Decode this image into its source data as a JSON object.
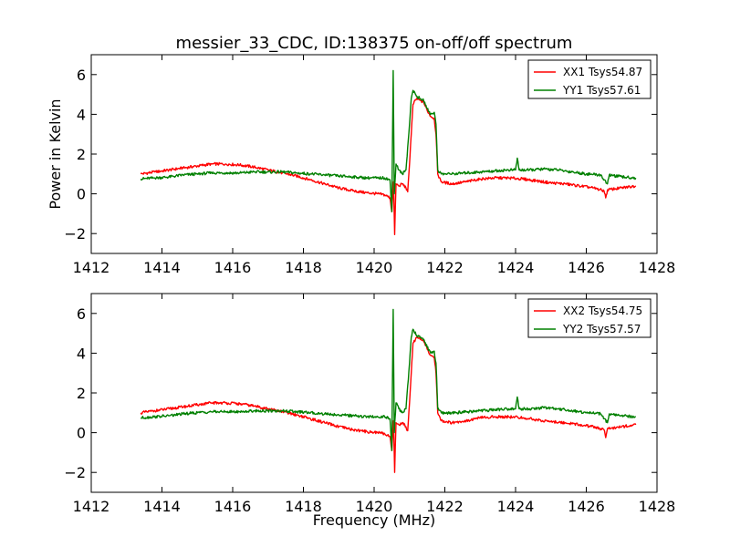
{
  "title": "messier_33_CDC, ID:138375 on-off/off spectrum",
  "xlabel": "Frequency (MHz)",
  "ylabel": "Power in Kelvin",
  "colors": {
    "xx": "#ff0000",
    "yy": "#008000"
  },
  "chart_data": [
    {
      "type": "line",
      "ylabel": "Power in Kelvin",
      "xlim": [
        1412,
        1428
      ],
      "ylim": [
        -3,
        7
      ],
      "xticks": [
        1412,
        1414,
        1416,
        1418,
        1420,
        1422,
        1424,
        1426,
        1428
      ],
      "yticks": [
        -2,
        0,
        2,
        4,
        6
      ],
      "legend_position": "top-right",
      "series": [
        {
          "name": "XX1 Tsys54.87",
          "color": "#ff0000",
          "points": [
            [
              1413.4,
              1.0
            ],
            [
              1413.8,
              1.1
            ],
            [
              1414.2,
              1.2
            ],
            [
              1414.6,
              1.3
            ],
            [
              1415.0,
              1.4
            ],
            [
              1415.4,
              1.5
            ],
            [
              1415.8,
              1.5
            ],
            [
              1416.2,
              1.45
            ],
            [
              1416.6,
              1.35
            ],
            [
              1417.0,
              1.2
            ],
            [
              1417.4,
              1.05
            ],
            [
              1417.8,
              0.9
            ],
            [
              1418.2,
              0.7
            ],
            [
              1418.6,
              0.5
            ],
            [
              1419.0,
              0.3
            ],
            [
              1419.4,
              0.15
            ],
            [
              1419.8,
              0.05
            ],
            [
              1420.1,
              0.0
            ],
            [
              1420.3,
              -0.05
            ],
            [
              1420.45,
              -0.2
            ],
            [
              1420.5,
              -0.9
            ],
            [
              1420.55,
              0.6
            ],
            [
              1420.58,
              -2.05
            ],
            [
              1420.62,
              0.5
            ],
            [
              1420.7,
              0.4
            ],
            [
              1420.8,
              0.5
            ],
            [
              1420.9,
              0.3
            ],
            [
              1420.95,
              0.1
            ],
            [
              1421.0,
              1.5
            ],
            [
              1421.05,
              3.0
            ],
            [
              1421.1,
              4.5
            ],
            [
              1421.2,
              4.8
            ],
            [
              1421.3,
              4.7
            ],
            [
              1421.4,
              4.6
            ],
            [
              1421.5,
              4.2
            ],
            [
              1421.6,
              3.9
            ],
            [
              1421.7,
              3.8
            ],
            [
              1421.75,
              3.0
            ],
            [
              1421.8,
              1.0
            ],
            [
              1421.9,
              0.6
            ],
            [
              1422.2,
              0.5
            ],
            [
              1422.6,
              0.6
            ],
            [
              1423.0,
              0.75
            ],
            [
              1423.4,
              0.8
            ],
            [
              1423.8,
              0.8
            ],
            [
              1424.2,
              0.75
            ],
            [
              1424.6,
              0.65
            ],
            [
              1425.0,
              0.55
            ],
            [
              1425.4,
              0.5
            ],
            [
              1425.8,
              0.4
            ],
            [
              1426.2,
              0.3
            ],
            [
              1426.5,
              0.15
            ],
            [
              1426.55,
              -0.2
            ],
            [
              1426.6,
              0.2
            ],
            [
              1427.0,
              0.3
            ],
            [
              1427.4,
              0.4
            ]
          ]
        },
        {
          "name": "YY1 Tsys57.61",
          "color": "#008000",
          "points": [
            [
              1413.4,
              0.75
            ],
            [
              1413.8,
              0.8
            ],
            [
              1414.2,
              0.85
            ],
            [
              1414.6,
              0.95
            ],
            [
              1415.0,
              1.0
            ],
            [
              1415.4,
              1.05
            ],
            [
              1415.8,
              1.05
            ],
            [
              1416.2,
              1.05
            ],
            [
              1416.6,
              1.1
            ],
            [
              1417.0,
              1.1
            ],
            [
              1417.4,
              1.1
            ],
            [
              1417.8,
              1.05
            ],
            [
              1418.2,
              1.0
            ],
            [
              1418.6,
              0.95
            ],
            [
              1419.0,
              0.9
            ],
            [
              1419.4,
              0.85
            ],
            [
              1419.8,
              0.8
            ],
            [
              1420.1,
              0.8
            ],
            [
              1420.3,
              0.8
            ],
            [
              1420.45,
              0.7
            ],
            [
              1420.5,
              -0.9
            ],
            [
              1420.54,
              6.2
            ],
            [
              1420.57,
              0.0
            ],
            [
              1420.62,
              1.5
            ],
            [
              1420.7,
              1.2
            ],
            [
              1420.8,
              1.0
            ],
            [
              1420.9,
              1.2
            ],
            [
              1421.0,
              3.5
            ],
            [
              1421.05,
              4.8
            ],
            [
              1421.1,
              5.2
            ],
            [
              1421.2,
              4.9
            ],
            [
              1421.3,
              4.8
            ],
            [
              1421.4,
              4.7
            ],
            [
              1421.5,
              4.3
            ],
            [
              1421.6,
              4.0
            ],
            [
              1421.7,
              4.1
            ],
            [
              1421.75,
              3.5
            ],
            [
              1421.8,
              1.2
            ],
            [
              1421.9,
              1.0
            ],
            [
              1422.2,
              1.0
            ],
            [
              1422.6,
              1.05
            ],
            [
              1423.0,
              1.1
            ],
            [
              1423.4,
              1.15
            ],
            [
              1423.8,
              1.2
            ],
            [
              1424.0,
              1.2
            ],
            [
              1424.05,
              1.8
            ],
            [
              1424.1,
              1.2
            ],
            [
              1424.4,
              1.2
            ],
            [
              1424.8,
              1.25
            ],
            [
              1425.2,
              1.2
            ],
            [
              1425.6,
              1.1
            ],
            [
              1426.0,
              1.0
            ],
            [
              1426.4,
              0.95
            ],
            [
              1426.6,
              0.5
            ],
            [
              1426.65,
              0.95
            ],
            [
              1427.0,
              0.85
            ],
            [
              1427.4,
              0.8
            ]
          ]
        }
      ]
    },
    {
      "type": "line",
      "xlabel": "Frequency (MHz)",
      "xlim": [
        1412,
        1428
      ],
      "ylim": [
        -3,
        7
      ],
      "xticks": [
        1412,
        1414,
        1416,
        1418,
        1420,
        1422,
        1424,
        1426,
        1428
      ],
      "yticks": [
        -2,
        0,
        2,
        4,
        6
      ],
      "legend_position": "top-right",
      "series": [
        {
          "name": "XX2 Tsys54.75",
          "color": "#ff0000",
          "points": [
            [
              1413.4,
              1.0
            ],
            [
              1413.8,
              1.1
            ],
            [
              1414.2,
              1.2
            ],
            [
              1414.6,
              1.3
            ],
            [
              1415.0,
              1.4
            ],
            [
              1415.4,
              1.5
            ],
            [
              1415.8,
              1.5
            ],
            [
              1416.2,
              1.45
            ],
            [
              1416.6,
              1.35
            ],
            [
              1417.0,
              1.2
            ],
            [
              1417.4,
              1.05
            ],
            [
              1417.8,
              0.9
            ],
            [
              1418.2,
              0.7
            ],
            [
              1418.6,
              0.5
            ],
            [
              1419.0,
              0.3
            ],
            [
              1419.4,
              0.15
            ],
            [
              1419.8,
              0.05
            ],
            [
              1420.1,
              0.0
            ],
            [
              1420.3,
              -0.05
            ],
            [
              1420.45,
              -0.2
            ],
            [
              1420.5,
              -0.9
            ],
            [
              1420.55,
              0.6
            ],
            [
              1420.58,
              -2.0
            ],
            [
              1420.62,
              0.5
            ],
            [
              1420.7,
              0.4
            ],
            [
              1420.8,
              0.5
            ],
            [
              1420.9,
              0.3
            ],
            [
              1420.95,
              0.1
            ],
            [
              1421.0,
              1.5
            ],
            [
              1421.05,
              3.0
            ],
            [
              1421.1,
              4.5
            ],
            [
              1421.2,
              4.8
            ],
            [
              1421.3,
              4.7
            ],
            [
              1421.4,
              4.6
            ],
            [
              1421.5,
              4.2
            ],
            [
              1421.6,
              3.9
            ],
            [
              1421.7,
              3.8
            ],
            [
              1421.75,
              3.0
            ],
            [
              1421.8,
              1.0
            ],
            [
              1421.9,
              0.6
            ],
            [
              1422.2,
              0.5
            ],
            [
              1422.6,
              0.6
            ],
            [
              1423.0,
              0.75
            ],
            [
              1423.4,
              0.8
            ],
            [
              1423.8,
              0.8
            ],
            [
              1424.2,
              0.75
            ],
            [
              1424.6,
              0.65
            ],
            [
              1425.0,
              0.55
            ],
            [
              1425.4,
              0.5
            ],
            [
              1425.8,
              0.4
            ],
            [
              1426.2,
              0.3
            ],
            [
              1426.5,
              0.15
            ],
            [
              1426.55,
              -0.25
            ],
            [
              1426.6,
              0.2
            ],
            [
              1427.0,
              0.3
            ],
            [
              1427.4,
              0.4
            ]
          ]
        },
        {
          "name": "YY2 Tsys57.57",
          "color": "#008000",
          "points": [
            [
              1413.4,
              0.75
            ],
            [
              1413.8,
              0.8
            ],
            [
              1414.2,
              0.85
            ],
            [
              1414.6,
              0.95
            ],
            [
              1415.0,
              1.0
            ],
            [
              1415.4,
              1.05
            ],
            [
              1415.8,
              1.05
            ],
            [
              1416.2,
              1.05
            ],
            [
              1416.6,
              1.1
            ],
            [
              1417.0,
              1.1
            ],
            [
              1417.4,
              1.1
            ],
            [
              1417.8,
              1.05
            ],
            [
              1418.2,
              1.0
            ],
            [
              1418.6,
              0.95
            ],
            [
              1419.0,
              0.9
            ],
            [
              1419.4,
              0.85
            ],
            [
              1419.8,
              0.8
            ],
            [
              1420.1,
              0.8
            ],
            [
              1420.3,
              0.8
            ],
            [
              1420.45,
              0.7
            ],
            [
              1420.5,
              -0.9
            ],
            [
              1420.54,
              6.2
            ],
            [
              1420.57,
              0.0
            ],
            [
              1420.62,
              1.5
            ],
            [
              1420.7,
              1.2
            ],
            [
              1420.8,
              1.0
            ],
            [
              1420.9,
              1.2
            ],
            [
              1421.0,
              3.5
            ],
            [
              1421.05,
              4.8
            ],
            [
              1421.1,
              5.2
            ],
            [
              1421.2,
              4.9
            ],
            [
              1421.3,
              4.8
            ],
            [
              1421.4,
              4.7
            ],
            [
              1421.5,
              4.3
            ],
            [
              1421.6,
              4.0
            ],
            [
              1421.7,
              4.1
            ],
            [
              1421.75,
              3.5
            ],
            [
              1421.8,
              1.2
            ],
            [
              1421.9,
              1.0
            ],
            [
              1422.2,
              1.0
            ],
            [
              1422.6,
              1.05
            ],
            [
              1423.0,
              1.1
            ],
            [
              1423.4,
              1.15
            ],
            [
              1423.8,
              1.2
            ],
            [
              1424.0,
              1.2
            ],
            [
              1424.05,
              1.8
            ],
            [
              1424.1,
              1.2
            ],
            [
              1424.4,
              1.2
            ],
            [
              1424.8,
              1.25
            ],
            [
              1425.2,
              1.2
            ],
            [
              1425.6,
              1.1
            ],
            [
              1426.0,
              1.0
            ],
            [
              1426.4,
              0.95
            ],
            [
              1426.6,
              0.5
            ],
            [
              1426.65,
              0.95
            ],
            [
              1427.0,
              0.85
            ],
            [
              1427.4,
              0.8
            ]
          ]
        }
      ]
    }
  ]
}
